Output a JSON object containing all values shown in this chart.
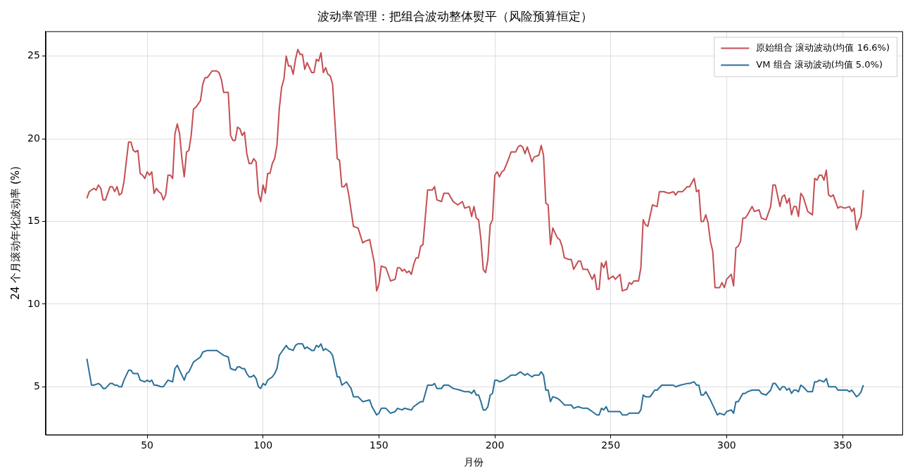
{
  "chart_data": {
    "type": "line",
    "title": "波动率管理：把组合波动整体熨平（风险预算恒定）",
    "xlabel": "月份",
    "ylabel": "24 个月滚动年化波动率 (%)",
    "xlim": [
      6.2,
      375.8
    ],
    "xticks": [
      50,
      100,
      150,
      200,
      250,
      300,
      350
    ],
    "ylim": [
      2.1,
      26.5
    ],
    "yticks": [
      5,
      10,
      15,
      20,
      25
    ],
    "grid": true,
    "legend": "top right",
    "series": [
      {
        "name": "原始组合 滚动波动(均值 16.6%)",
        "color": "#c44e52",
        "x": [
          24,
          25,
          27,
          28,
          29,
          30,
          31,
          32,
          34,
          35,
          36,
          37,
          38,
          39,
          40,
          42,
          43,
          44,
          45,
          46,
          47,
          48,
          49,
          50,
          51,
          52,
          53,
          54,
          55,
          56,
          57,
          58,
          59,
          60,
          61,
          62,
          63,
          64,
          65,
          66,
          67,
          68,
          69,
          70,
          71,
          73,
          74,
          75,
          76,
          78,
          80,
          81,
          82,
          83,
          85,
          86,
          87,
          88,
          89,
          90,
          91,
          92,
          93,
          94,
          95,
          96,
          97,
          98,
          99,
          100,
          101,
          102,
          103,
          104,
          105,
          106,
          107,
          108,
          109,
          110,
          111,
          112,
          113,
          114,
          115,
          116,
          117,
          118,
          119,
          121,
          122,
          123,
          124,
          125,
          126,
          127,
          128,
          129,
          130,
          132,
          133,
          134,
          135,
          136,
          137,
          139,
          141,
          143,
          144,
          146,
          148,
          149,
          150,
          151,
          153,
          155,
          157,
          158,
          159,
          160,
          161,
          162,
          163,
          164,
          165,
          166,
          167,
          168,
          169,
          171,
          173,
          174,
          175,
          177,
          178,
          180,
          182,
          184,
          186,
          187,
          189,
          190,
          191,
          192,
          193,
          194,
          195,
          196,
          197,
          198,
          199,
          200,
          201,
          202,
          203,
          204,
          206,
          207,
          209,
          210,
          211,
          212,
          213,
          214,
          216,
          217,
          219,
          220,
          221,
          222,
          223,
          224,
          225,
          227,
          228,
          229,
          230,
          232,
          233,
          234,
          236,
          237,
          238,
          240,
          242,
          243,
          244,
          245,
          246,
          247,
          248,
          249,
          251,
          252,
          254,
          255,
          257,
          258,
          259,
          260,
          262,
          263,
          264,
          265,
          266,
          268,
          270,
          271,
          273,
          275,
          277,
          278,
          279,
          281,
          283,
          284,
          286,
          287,
          288,
          289,
          290,
          291,
          292,
          293,
          294,
          295,
          297,
          298,
          299,
          300,
          302,
          303,
          304,
          305,
          306,
          307,
          308,
          309,
          311,
          312,
          314,
          315,
          317,
          319,
          320,
          321,
          323,
          324,
          325,
          326,
          327,
          328,
          329,
          330,
          331,
          332,
          333,
          335,
          337,
          338,
          339,
          340,
          341,
          342,
          343,
          344,
          345,
          346,
          348,
          349,
          351,
          353,
          354,
          355,
          356,
          357,
          358,
          359
        ],
        "values": [
          16.4,
          16.8,
          17.0,
          16.9,
          17.2,
          17.0,
          16.3,
          16.3,
          17.1,
          17.1,
          16.8,
          17.1,
          16.6,
          16.7,
          17.4,
          19.8,
          19.8,
          19.3,
          19.2,
          19.3,
          17.9,
          17.8,
          17.6,
          18.0,
          17.8,
          18.0,
          16.7,
          17.0,
          16.8,
          16.7,
          16.3,
          16.6,
          17.8,
          17.8,
          17.6,
          20.3,
          20.9,
          20.3,
          18.8,
          17.7,
          19.2,
          19.3,
          20.2,
          21.8,
          21.9,
          22.3,
          23.3,
          23.7,
          23.7,
          24.1,
          24.1,
          24.0,
          23.6,
          22.8,
          22.8,
          20.2,
          19.9,
          19.9,
          20.7,
          20.6,
          20.2,
          20.4,
          19.1,
          18.5,
          18.5,
          18.8,
          18.6,
          16.7,
          16.2,
          17.2,
          16.7,
          17.9,
          17.9,
          18.5,
          18.8,
          19.6,
          21.8,
          23.1,
          23.6,
          25.0,
          24.4,
          24.4,
          23.9,
          24.8,
          25.4,
          25.1,
          25.1,
          24.2,
          24.6,
          24.0,
          24.0,
          24.8,
          24.7,
          25.2,
          24.0,
          24.3,
          23.9,
          23.8,
          23.3,
          18.8,
          18.7,
          17.1,
          17.1,
          17.3,
          16.6,
          14.7,
          14.6,
          13.7,
          13.8,
          13.9,
          12.5,
          10.8,
          11.2,
          12.3,
          12.2,
          11.4,
          11.5,
          12.2,
          12.2,
          12.0,
          12.1,
          11.9,
          12.0,
          11.8,
          12.4,
          12.8,
          12.8,
          13.5,
          13.6,
          16.9,
          16.9,
          17.1,
          16.3,
          16.2,
          16.7,
          16.7,
          16.2,
          16.0,
          16.2,
          15.8,
          15.9,
          15.3,
          15.9,
          15.2,
          15.1,
          13.9,
          12.1,
          11.9,
          12.7,
          14.8,
          15.1,
          17.8,
          18.0,
          17.7,
          18.0,
          18.1,
          18.8,
          19.2,
          19.2,
          19.5,
          19.6,
          19.5,
          19.1,
          19.5,
          18.6,
          18.9,
          19.0,
          19.6,
          19.0,
          16.1,
          16.0,
          13.6,
          14.6,
          14.0,
          13.9,
          13.5,
          12.8,
          12.7,
          12.7,
          12.1,
          12.6,
          12.6,
          12.1,
          12.1,
          11.5,
          11.8,
          10.9,
          10.9,
          12.5,
          12.2,
          12.6,
          11.5,
          11.7,
          11.5,
          11.8,
          10.8,
          10.9,
          11.3,
          11.2,
          11.4,
          11.4,
          12.2,
          15.1,
          14.8,
          14.7,
          16.0,
          15.9,
          16.8,
          16.8,
          16.7,
          16.8,
          16.6,
          16.8,
          16.8,
          17.1,
          17.1,
          17.6,
          16.8,
          16.9,
          15.0,
          15.0,
          15.4,
          14.9,
          13.8,
          13.2,
          11.0,
          11.0,
          11.3,
          11.0,
          11.5,
          11.8,
          11.1,
          13.4,
          13.5,
          13.8,
          15.2,
          15.2,
          15.4,
          15.9,
          15.6,
          15.7,
          15.2,
          15.1,
          15.9,
          17.2,
          17.2,
          15.9,
          16.5,
          16.6,
          16.1,
          16.4,
          15.4,
          15.9,
          15.9,
          15.3,
          16.7,
          16.5,
          15.6,
          15.4,
          17.6,
          17.5,
          17.8,
          17.8,
          17.5,
          18.1,
          16.6,
          16.5,
          16.6,
          15.8,
          15.9,
          15.8,
          15.9,
          15.6,
          15.8,
          14.5,
          15.0,
          15.3,
          16.9
        ]
      },
      {
        "name": "VM 组合 滚动波动(均值 5.0%)",
        "color": "#2a6f97",
        "x": [
          24,
          26,
          27,
          29,
          30,
          31,
          32,
          34,
          35,
          36,
          37,
          38,
          39,
          40,
          42,
          43,
          44,
          46,
          47,
          49,
          50,
          51,
          52,
          53,
          54,
          56,
          57,
          59,
          61,
          62,
          63,
          64,
          66,
          67,
          68,
          70,
          71,
          73,
          74,
          76,
          78,
          80,
          81,
          83,
          85,
          86,
          88,
          89,
          90,
          91,
          92,
          93,
          94,
          95,
          96,
          97,
          98,
          99,
          100,
          101,
          102,
          103,
          104,
          105,
          106,
          107,
          108,
          110,
          111,
          113,
          114,
          115,
          116,
          117,
          118,
          119,
          121,
          122,
          123,
          124,
          125,
          126,
          127,
          129,
          130,
          132,
          133,
          134,
          136,
          138,
          139,
          141,
          143,
          146,
          147,
          149,
          150,
          151,
          153,
          155,
          157,
          158,
          160,
          161,
          164,
          165,
          168,
          169,
          171,
          173,
          174,
          175,
          177,
          178,
          180,
          182,
          185,
          187,
          189,
          190,
          191,
          192,
          193,
          194,
          195,
          196,
          197,
          198,
          199,
          200,
          201,
          202,
          204,
          206,
          207,
          209,
          211,
          212,
          213,
          214,
          216,
          217,
          219,
          220,
          221,
          222,
          223,
          224,
          225,
          227,
          228,
          230,
          232,
          233,
          234,
          236,
          238,
          240,
          242,
          244,
          245,
          246,
          247,
          248,
          249,
          252,
          254,
          255,
          257,
          258,
          260,
          262,
          263,
          264,
          265,
          267,
          269,
          270,
          272,
          274,
          277,
          278,
          280,
          283,
          284,
          286,
          287,
          288,
          289,
          290,
          291,
          293,
          294,
          296,
          297,
          299,
          300,
          302,
          303,
          304,
          305,
          307,
          308,
          309,
          311,
          312,
          314,
          315,
          317,
          319,
          320,
          321,
          323,
          324,
          325,
          326,
          327,
          328,
          329,
          330,
          331,
          332,
          333,
          335,
          337,
          338,
          339,
          340,
          342,
          343,
          344,
          346,
          347,
          348,
          350,
          352,
          353,
          354,
          356,
          357,
          358,
          359
        ],
        "values": [
          6.7,
          5.1,
          5.1,
          5.2,
          5.1,
          4.9,
          4.9,
          5.2,
          5.2,
          5.1,
          5.1,
          5.0,
          5.0,
          5.4,
          6.0,
          6.0,
          5.8,
          5.8,
          5.4,
          5.3,
          5.4,
          5.3,
          5.4,
          5.1,
          5.1,
          5.0,
          5.0,
          5.4,
          5.3,
          6.1,
          6.3,
          6.0,
          5.4,
          5.8,
          5.9,
          6.5,
          6.6,
          6.8,
          7.1,
          7.2,
          7.2,
          7.2,
          7.1,
          6.9,
          6.8,
          6.1,
          6.0,
          6.2,
          6.2,
          6.1,
          6.1,
          5.8,
          5.6,
          5.6,
          5.7,
          5.5,
          5.0,
          4.9,
          5.2,
          5.1,
          5.4,
          5.5,
          5.6,
          5.8,
          6.1,
          6.9,
          7.1,
          7.5,
          7.3,
          7.2,
          7.5,
          7.6,
          7.6,
          7.6,
          7.3,
          7.4,
          7.2,
          7.2,
          7.5,
          7.4,
          7.6,
          7.2,
          7.3,
          7.1,
          6.9,
          5.6,
          5.6,
          5.1,
          5.3,
          4.9,
          4.4,
          4.4,
          4.1,
          4.2,
          3.8,
          3.3,
          3.4,
          3.7,
          3.7,
          3.4,
          3.5,
          3.7,
          3.6,
          3.7,
          3.6,
          3.8,
          4.1,
          4.1,
          5.1,
          5.1,
          5.2,
          4.9,
          4.9,
          5.1,
          5.1,
          4.9,
          4.8,
          4.7,
          4.7,
          4.6,
          4.8,
          4.5,
          4.5,
          4.1,
          3.6,
          3.6,
          3.8,
          4.5,
          4.6,
          5.4,
          5.4,
          5.3,
          5.4,
          5.6,
          5.7,
          5.7,
          5.9,
          5.8,
          5.7,
          5.8,
          5.6,
          5.7,
          5.7,
          5.9,
          5.7,
          4.8,
          4.8,
          4.1,
          4.4,
          4.3,
          4.2,
          3.9,
          3.9,
          3.9,
          3.7,
          3.8,
          3.7,
          3.7,
          3.5,
          3.3,
          3.3,
          3.7,
          3.6,
          3.8,
          3.5,
          3.5,
          3.5,
          3.3,
          3.3,
          3.4,
          3.4,
          3.4,
          3.6,
          4.5,
          4.4,
          4.4,
          4.8,
          4.8,
          5.1,
          5.1,
          5.1,
          5.0,
          5.1,
          5.2,
          5.2,
          5.3,
          5.1,
          5.1,
          4.5,
          4.5,
          4.7,
          4.2,
          3.9,
          3.3,
          3.4,
          3.3,
          3.5,
          3.6,
          3.4,
          4.1,
          4.1,
          4.6,
          4.6,
          4.7,
          4.8,
          4.8,
          4.8,
          4.6,
          4.5,
          4.8,
          5.2,
          5.2,
          4.8,
          5.0,
          5.0,
          4.8,
          4.9,
          4.6,
          4.8,
          4.8,
          4.7,
          5.1,
          5.0,
          4.7,
          4.7,
          5.3,
          5.3,
          5.4,
          5.3,
          5.5,
          5.0,
          5.0,
          5.0,
          4.8,
          4.8,
          4.8,
          4.7,
          4.8,
          4.4,
          4.5,
          4.7,
          5.1
        ]
      }
    ]
  }
}
